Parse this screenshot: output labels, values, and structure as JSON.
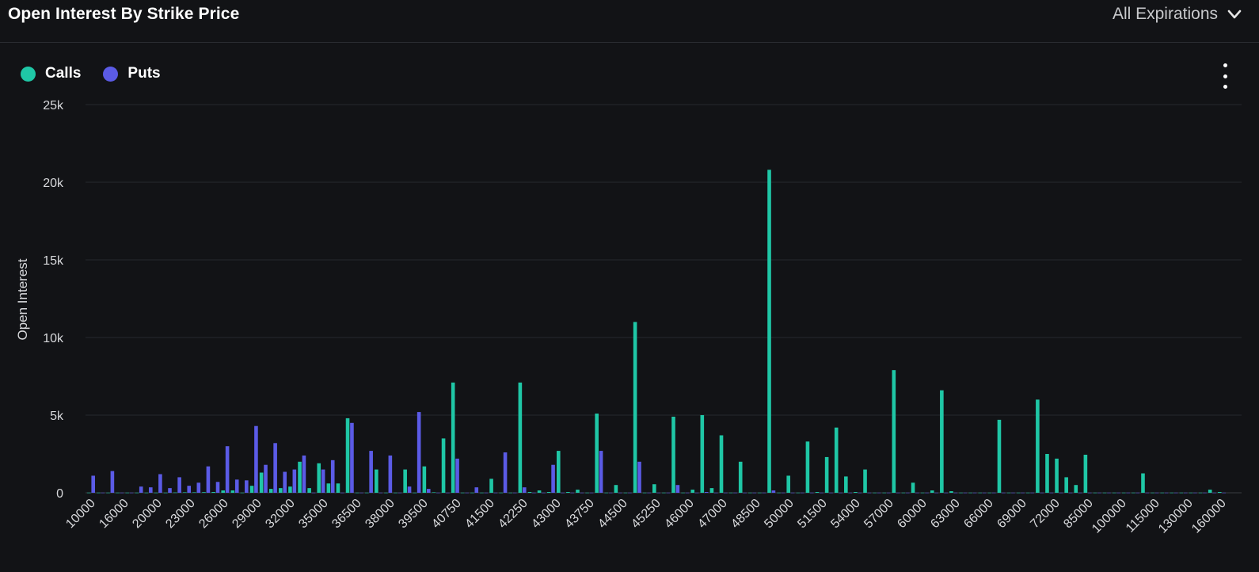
{
  "header": {
    "title": "Open Interest By Strike Price",
    "expiry_label": "All Expirations",
    "expiry_icon": "chevron-down-icon"
  },
  "menu_icon": "kebab-menu-icon",
  "chart_data": {
    "type": "bar",
    "title": "Open Interest By Strike Price",
    "xlabel": "",
    "ylabel": "Open Interest",
    "ylim": [
      0,
      25000
    ],
    "yticks": [
      "0",
      "5k",
      "10k",
      "15k",
      "20k",
      "25k"
    ],
    "ytick_values": [
      0,
      5000,
      10000,
      15000,
      20000,
      25000
    ],
    "grid": true,
    "legend_placement": "top-left",
    "xtick_labels": [
      "10000",
      "16000",
      "20000",
      "23000",
      "26000",
      "29000",
      "32000",
      "35000",
      "36500",
      "38000",
      "39500",
      "40750",
      "41500",
      "42250",
      "43000",
      "43750",
      "44500",
      "45250",
      "46000",
      "47000",
      "48500",
      "50000",
      "51500",
      "54000",
      "57000",
      "60000",
      "63000",
      "66000",
      "69000",
      "72000",
      "85000",
      "100000",
      "115000",
      "130000",
      "160000"
    ],
    "colors": {
      "Calls": "#1fc7a6",
      "Puts": "#5b5be6"
    },
    "series": [
      {
        "name": "Calls",
        "values": [
          10,
          10,
          10,
          10,
          10,
          10,
          10,
          10,
          10,
          20,
          30,
          30,
          40,
          50,
          150,
          150,
          10,
          450,
          1300,
          250,
          300,
          400,
          2000,
          300,
          1900,
          600,
          600,
          4800,
          10,
          10,
          1500,
          10,
          10,
          1500,
          10,
          1700,
          30,
          3500,
          7100,
          10,
          10,
          10,
          900,
          10,
          10,
          7100,
          50,
          150,
          50,
          2700,
          50,
          200,
          10,
          5100,
          10,
          500,
          10,
          11000,
          10,
          550,
          10,
          4900,
          10,
          200,
          5000,
          300,
          3700,
          10,
          2000,
          10,
          10,
          20800,
          10,
          1100,
          10,
          3300,
          50,
          2300,
          4200,
          1050,
          50,
          1500,
          10,
          10,
          7900,
          10,
          650,
          10,
          150,
          6600,
          100,
          10,
          10,
          10,
          10,
          4700,
          10,
          10,
          10,
          6000,
          2500,
          2200,
          1000,
          500,
          2450,
          10,
          10,
          10,
          10,
          10,
          1250,
          10,
          10,
          10,
          10,
          10,
          10,
          200,
          50
        ]
      },
      {
        "name": "Puts",
        "values": [
          1100,
          10,
          1400,
          10,
          10,
          400,
          350,
          1200,
          300,
          1000,
          450,
          650,
          1700,
          700,
          3000,
          850,
          800,
          4300,
          1800,
          3200,
          1350,
          1500,
          2400,
          10,
          1500,
          2100,
          10,
          4500,
          10,
          2700,
          10,
          2400,
          10,
          400,
          5200,
          250,
          10,
          10,
          2200,
          10,
          350,
          10,
          10,
          2600,
          10,
          350,
          10,
          10,
          1800,
          10,
          10,
          10,
          10,
          2700,
          10,
          10,
          10,
          2000,
          10,
          10,
          10,
          500,
          10,
          10,
          50,
          10,
          10,
          10,
          10,
          10,
          10,
          150,
          10,
          10,
          10,
          10,
          10,
          10,
          10,
          10,
          10,
          10,
          10,
          10,
          10,
          10,
          10,
          10,
          10,
          10,
          10,
          10,
          10,
          10,
          10,
          10,
          10,
          10,
          10,
          10,
          10,
          10,
          10,
          10,
          10,
          10,
          10,
          10,
          10,
          10,
          10,
          10,
          10,
          10,
          10,
          10,
          10,
          10,
          10
        ]
      }
    ]
  }
}
